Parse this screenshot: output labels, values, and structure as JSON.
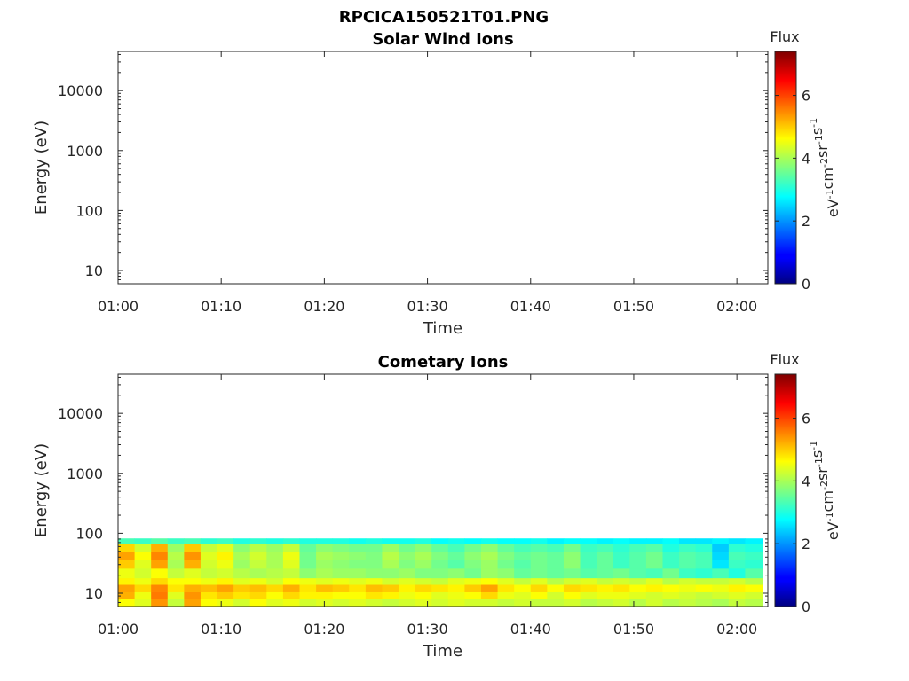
{
  "figure": {
    "title": "RPCICA150521T01.PNG"
  },
  "chart_data": [
    {
      "type": "heatmap",
      "title": "Solar Wind Ions",
      "xlabel": "Time",
      "ylabel": "Energy (eV)",
      "x_tick_labels": [
        "01:00",
        "01:10",
        "01:20",
        "01:30",
        "01:40",
        "01:50",
        "02:00"
      ],
      "y_tick_labels": [
        "10",
        "100",
        "1000",
        "10000"
      ],
      "y_scale": "log",
      "ylim": [
        6,
        45000
      ],
      "xlim_minutes": [
        0,
        63
      ],
      "colorbar": {
        "title": "Flux",
        "units": "eV-1cm-2sr-1s-1",
        "tick_labels": [
          "0",
          "2",
          "4",
          "6"
        ],
        "range": [
          0,
          7.4
        ],
        "colormap": "jet"
      },
      "cells": []
    },
    {
      "type": "heatmap",
      "title": "Cometary Ions",
      "xlabel": "Time",
      "ylabel": "Energy (eV)",
      "x_tick_labels": [
        "01:00",
        "01:10",
        "01:20",
        "01:30",
        "01:40",
        "01:50",
        "02:00"
      ],
      "y_tick_labels": [
        "10",
        "100",
        "1000",
        "10000"
      ],
      "y_scale": "log",
      "ylim": [
        6,
        45000
      ],
      "xlim_minutes": [
        0,
        63
      ],
      "colorbar": {
        "title": "Flux",
        "units": "eV-1cm-2sr-1s-1",
        "tick_labels": [
          "0",
          "2",
          "4",
          "6"
        ],
        "range": [
          0,
          7.4
        ],
        "colormap": "jet"
      },
      "energy_bins_eV": [
        6,
        8,
        10.5,
        14,
        18,
        26,
        36,
        50,
        68,
        82
      ],
      "time_minutes": [
        0,
        1.6,
        3.2,
        4.8,
        6.4,
        8.0,
        9.6,
        11.2,
        12.8,
        14.4,
        16.0,
        17.6,
        19.2,
        20.8,
        22.4,
        24.0,
        25.6,
        27.2,
        28.8,
        30.4,
        32.0,
        33.6,
        35.2,
        36.8,
        38.4,
        40.0,
        41.6,
        43.2,
        44.8,
        46.4,
        48.0,
        49.6,
        51.2,
        52.8,
        54.4,
        56.0,
        57.6,
        59.2,
        60.8,
        62.5
      ],
      "flux": [
        [
          4.6,
          4.4,
          5.4,
          4.2,
          5.3,
          4.6,
          4.5,
          4.3,
          4.6,
          4.4,
          4.5,
          4.3,
          4.4,
          4.3,
          4.4,
          4.3,
          4.2,
          4.3,
          4.4,
          4.3,
          4.4,
          4.3,
          4.3,
          4.2,
          4.3,
          4.2,
          4.2,
          4.3,
          4.1,
          4.2,
          4.3,
          4.1,
          4.3,
          4.1,
          4.2,
          4.1,
          4.0,
          4.2,
          4.1
        ],
        [
          5.2,
          4.5,
          5.6,
          4.4,
          5.4,
          4.8,
          5.0,
          4.8,
          4.9,
          4.6,
          4.9,
          4.7,
          4.7,
          4.6,
          4.6,
          4.8,
          4.7,
          4.5,
          4.6,
          4.4,
          4.5,
          4.6,
          4.9,
          4.5,
          4.4,
          4.6,
          4.3,
          4.6,
          4.4,
          4.5,
          4.5,
          4.4,
          4.3,
          4.4,
          4.3,
          4.2,
          4.3,
          4.4,
          4.3
        ],
        [
          5.3,
          4.9,
          5.5,
          4.8,
          5.2,
          5.1,
          5.3,
          5.0,
          5.1,
          4.9,
          5.2,
          4.8,
          5.1,
          5.0,
          4.8,
          5.1,
          5.0,
          4.7,
          4.9,
          4.8,
          4.7,
          5.0,
          5.3,
          4.8,
          4.6,
          4.9,
          4.6,
          4.9,
          4.8,
          4.7,
          4.8,
          4.6,
          4.7,
          4.6,
          4.5,
          4.6,
          4.5,
          4.7,
          4.6
        ],
        [
          4.7,
          4.5,
          4.9,
          4.6,
          4.6,
          4.5,
          4.7,
          4.4,
          4.5,
          4.3,
          4.6,
          4.5,
          4.4,
          4.5,
          4.4,
          4.5,
          4.3,
          4.4,
          4.3,
          4.2,
          4.4,
          4.5,
          4.6,
          4.4,
          4.2,
          4.4,
          4.1,
          4.3,
          4.4,
          4.2,
          4.3,
          4.2,
          4.4,
          4.1,
          4.3,
          4.2,
          4.2,
          4.3,
          4.1
        ],
        [
          4.5,
          4.3,
          4.6,
          4.2,
          4.4,
          4.2,
          4.3,
          4.1,
          4.0,
          4.1,
          4.2,
          3.8,
          4.0,
          3.9,
          3.9,
          3.8,
          3.8,
          3.9,
          3.7,
          3.7,
          3.8,
          3.6,
          3.9,
          3.8,
          3.5,
          3.6,
          3.5,
          3.6,
          3.4,
          3.5,
          3.6,
          3.4,
          3.3,
          3.6,
          3.2,
          3.1,
          3.3,
          3.0,
          3.4
        ],
        [
          5.0,
          4.4,
          5.3,
          4.0,
          5.2,
          4.3,
          4.5,
          3.9,
          4.2,
          4.0,
          4.4,
          3.6,
          3.9,
          3.8,
          3.7,
          3.7,
          4.0,
          3.7,
          3.9,
          3.6,
          3.4,
          3.7,
          3.9,
          3.6,
          3.4,
          3.6,
          3.5,
          3.8,
          3.3,
          3.5,
          3.2,
          3.4,
          3.6,
          3.2,
          3.4,
          3.3,
          2.6,
          3.2,
          3.1
        ],
        [
          5.3,
          4.6,
          5.5,
          4.1,
          5.4,
          4.4,
          4.7,
          4.0,
          4.3,
          4.0,
          4.5,
          3.6,
          4.0,
          3.9,
          3.8,
          3.7,
          4.1,
          3.8,
          4.0,
          3.7,
          3.5,
          3.8,
          4.0,
          3.7,
          3.5,
          3.6,
          3.5,
          3.8,
          3.3,
          3.5,
          3.2,
          3.4,
          3.6,
          3.2,
          3.4,
          3.3,
          2.5,
          3.3,
          3.2
        ],
        [
          4.9,
          4.3,
          5.2,
          3.9,
          5.0,
          4.2,
          4.4,
          3.8,
          4.1,
          3.9,
          4.2,
          3.5,
          3.8,
          3.7,
          3.6,
          3.6,
          3.9,
          3.6,
          3.8,
          3.5,
          3.3,
          3.6,
          3.8,
          3.5,
          3.3,
          3.4,
          3.3,
          3.6,
          3.2,
          3.3,
          3.1,
          3.3,
          3.4,
          3.0,
          3.2,
          3.1,
          2.4,
          3.1,
          3.0
        ],
        [
          3.3,
          3.2,
          3.4,
          3.2,
          3.3,
          3.1,
          3.2,
          3.0,
          3.1,
          3.0,
          3.1,
          3.0,
          3.0,
          3.0,
          2.9,
          3.0,
          2.9,
          2.9,
          3.0,
          2.8,
          2.9,
          2.8,
          2.9,
          2.8,
          2.8,
          2.9,
          2.7,
          2.8,
          2.8,
          2.7,
          2.8,
          2.7,
          2.7,
          2.8,
          2.6,
          2.6,
          2.7,
          2.6,
          2.7
        ]
      ]
    }
  ]
}
